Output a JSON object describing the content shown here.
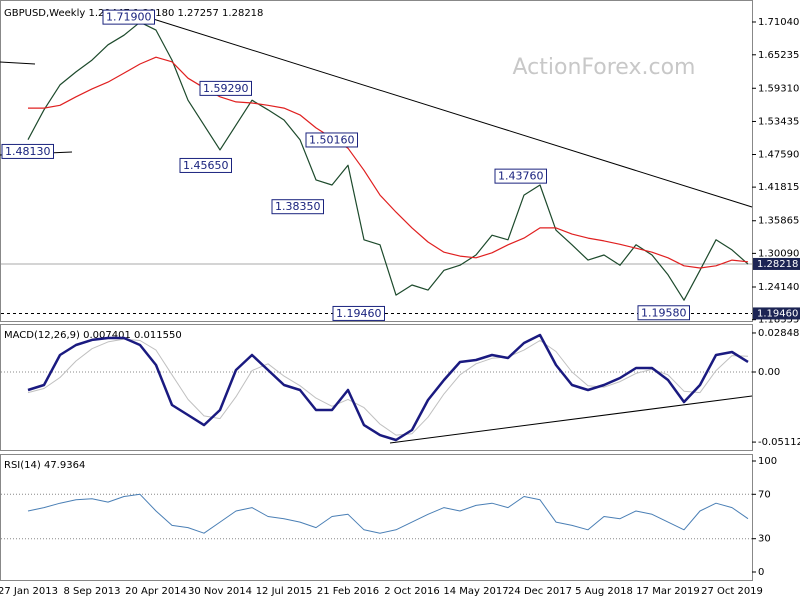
{
  "watermark": "ActionForex.com",
  "chart_data": [
    {
      "type": "line",
      "title": "GBPUSD,Weekly  1.29447 1.30180 1.27257 1.28218",
      "ylim": [
        1.183,
        1.744
      ],
      "yticks": [
        {
          "value": 1.7104,
          "label": "1.71040"
        },
        1.65235,
        {
          "value": 1.5931,
          "label": "1.59310"
        },
        1.53435,
        {
          "value": 1.4759,
          "label": "1.47590"
        },
        1.41815,
        1.35865,
        {
          "value": 1.3009,
          "label": "1.30090"
        },
        {
          "value": 1.2414,
          "label": "1.24140"
        },
        1.18355
      ],
      "grid": false,
      "levels": [
        {
          "value": 1.28218,
          "label": "1.28218",
          "style": "solid"
        },
        {
          "value": 1.1946,
          "label": "1.19460",
          "style": "dashed"
        }
      ],
      "annotations": [
        {
          "value": 1.719,
          "label": "1.71900"
        },
        {
          "value": 1.5929,
          "label": "1.59290"
        },
        {
          "value": 1.4565,
          "label": "1.45650"
        },
        {
          "value": 1.5016,
          "label": "1.50160"
        },
        {
          "value": 1.3835,
          "label": "1.38350"
        },
        {
          "value": 1.4376,
          "label": "1.43760"
        },
        {
          "value": 1.1946,
          "label": "1.19460"
        },
        {
          "value": 1.1958,
          "label": "1.19580"
        },
        {
          "value": 1.4813,
          "label": "1.48130"
        }
      ],
      "series": [
        {
          "color": "#1d4a2c",
          "width": 1.2,
          "values": [
            1.502,
            1.555,
            1.599,
            1.622,
            1.643,
            1.67,
            1.687,
            1.71,
            1.696,
            1.643,
            1.572,
            1.528,
            1.484,
            1.528,
            1.572,
            1.555,
            1.537,
            1.502,
            1.431,
            1.422,
            1.457,
            1.325,
            1.316,
            1.227,
            1.245,
            1.236,
            1.271,
            1.28,
            1.298,
            1.333,
            1.325,
            1.404,
            1.422,
            1.342,
            1.316,
            1.289,
            1.298,
            1.28,
            1.316,
            1.298,
            1.263,
            1.218,
            1.271,
            1.325,
            1.307,
            1.282
          ]
        },
        {
          "color": "#e02020",
          "width": 1.2,
          "values": [
            1.558,
            1.558,
            1.563,
            1.578,
            1.592,
            1.604,
            1.62,
            1.636,
            1.648,
            1.64,
            1.611,
            1.594,
            1.578,
            1.569,
            1.567,
            1.563,
            1.558,
            1.546,
            1.523,
            1.505,
            1.487,
            1.448,
            1.404,
            1.374,
            1.346,
            1.321,
            1.303,
            1.296,
            1.293,
            1.302,
            1.316,
            1.328,
            1.346,
            1.346,
            1.335,
            1.328,
            1.323,
            1.317,
            1.31,
            1.303,
            1.293,
            1.279,
            1.275,
            1.279,
            1.289,
            1.286
          ]
        }
      ]
    },
    {
      "type": "line",
      "title": "MACD(12,26,9) 0.007401 0.011550",
      "ylim": [
        -0.0569,
        0.0343
      ],
      "yticks": [
        0.028489,
        {
          "value": 0,
          "label": "0.00"
        },
        -0.051125
      ],
      "grid": true,
      "series": [
        {
          "color": "#c0c0c0",
          "width": 1,
          "values": [
            -0.015,
            -0.012,
            -0.004,
            0.008,
            0.017,
            0.022,
            0.024,
            0.023,
            0.016,
            -0.002,
            -0.02,
            -0.032,
            -0.034,
            -0.018,
            0.001,
            0.006,
            -0.003,
            -0.01,
            -0.019,
            -0.025,
            -0.02,
            -0.026,
            -0.038,
            -0.046,
            -0.045,
            -0.033,
            -0.016,
            -0.002,
            0.006,
            0.01,
            0.011,
            0.016,
            0.023,
            0.015,
            0,
            -0.01,
            -0.011,
            -0.007,
            -0.001,
            0.002,
            -0.002,
            -0.014,
            -0.015,
            0.001,
            0.012,
            0.0115
          ]
        },
        {
          "color": "#1a1a80",
          "width": 2.5,
          "values": [
            -0.0131,
            -0.0095,
            0.0124,
            0.0197,
            0.0234,
            0.0248,
            0.0248,
            0.0197,
            0.0051,
            -0.0241,
            -0.0314,
            -0.0387,
            -0.0277,
            0.0015,
            0.0124,
            0.0015,
            -0.0095,
            -0.0131,
            -0.0277,
            -0.0277,
            -0.0131,
            -0.0387,
            -0.046,
            -0.0496,
            -0.0423,
            -0.0204,
            -0.0058,
            0.0073,
            0.0088,
            0.0124,
            0.0102,
            0.0212,
            0.027,
            0.0051,
            -0.0095,
            -0.0131,
            -0.0095,
            -0.0044,
            0.0029,
            0.0029,
            -0.0058,
            -0.0219,
            -0.0095,
            0.0124,
            0.0146,
            0.0074
          ]
        }
      ]
    },
    {
      "type": "line",
      "title": "RSI(14) 47.9364",
      "ylim": [
        -7.2,
        105.4
      ],
      "yticks": [
        100,
        70,
        30,
        0
      ],
      "grid": true,
      "categories": [
        "27 Jan 2013",
        null,
        null,
        null,
        "8 Sep 2013",
        null,
        null,
        null,
        "20 Apr 2014",
        null,
        null,
        null,
        "30 Nov 2014",
        null,
        null,
        null,
        "12 Jul 2015",
        null,
        null,
        null,
        "21 Feb 2016",
        null,
        null,
        null,
        "2 Oct 2016",
        null,
        null,
        null,
        "14 May 2017",
        null,
        null,
        null,
        "24 Dec 2017",
        null,
        null,
        null,
        "5 Aug 2018",
        null,
        null,
        null,
        "17 Mar 2019",
        null,
        null,
        null,
        "27 Oct 2019",
        null
      ],
      "series": [
        {
          "color": "#4a7fb5",
          "width": 1,
          "values": [
            55,
            58,
            62,
            65,
            66,
            63,
            68,
            70,
            55,
            42,
            40,
            35,
            45,
            55,
            58,
            50,
            48,
            45,
            40,
            50,
            52,
            38,
            35,
            38,
            45,
            52,
            58,
            55,
            60,
            62,
            58,
            68,
            65,
            45,
            42,
            38,
            50,
            48,
            55,
            52,
            45,
            38,
            55,
            62,
            58,
            48
          ]
        }
      ]
    }
  ]
}
